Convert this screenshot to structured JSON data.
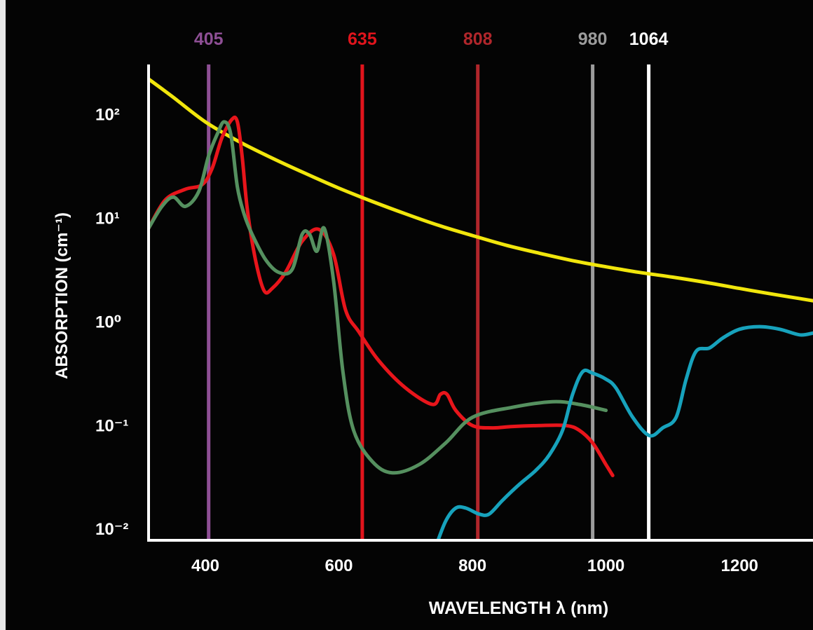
{
  "chart_data": {
    "type": "line",
    "title": "",
    "xlabel": "WAVELENGTH λ (nm)",
    "ylabel": "ABSORPTION (cm⁻¹)",
    "x_scale": "linear",
    "y_scale": "log",
    "xlim": [
      315,
      1310
    ],
    "ylim": [
      0.0077,
      500
    ],
    "x_ticks": [
      {
        "value": 400,
        "label": "400"
      },
      {
        "value": 600,
        "label": "600"
      },
      {
        "value": 800,
        "label": "800"
      },
      {
        "value": 1000,
        "label": "1000"
      },
      {
        "value": 1200,
        "label": "1200"
      }
    ],
    "y_ticks": [
      {
        "value": 100,
        "label": "10²"
      },
      {
        "value": 10,
        "label": "10¹"
      },
      {
        "value": 1,
        "label": "10⁰"
      },
      {
        "value": 0.1,
        "label": "10⁻¹"
      },
      {
        "value": 0.01,
        "label": "10⁻²"
      }
    ],
    "grid": false,
    "legend": "none",
    "vlines": [
      {
        "x": 405,
        "label": "405",
        "color": "#8e4f95"
      },
      {
        "x": 635,
        "label": "635",
        "color": "#e0141c"
      },
      {
        "x": 808,
        "label": "808",
        "color": "#b0262b"
      },
      {
        "x": 980,
        "label": "980",
        "color": "#9c9c9c"
      },
      {
        "x": 1064,
        "label": "1064",
        "color": "#ffffff"
      }
    ],
    "series": [
      {
        "color": "#f1e60c",
        "x": [
          315,
          350,
          400,
          450,
          500,
          550,
          600,
          650,
          700,
          750,
          800,
          850,
          900,
          950,
          1000,
          1050,
          1100,
          1150,
          1200,
          1250,
          1310
        ],
        "y": [
          220,
          150,
          85,
          55,
          38,
          27,
          19.5,
          14.5,
          11,
          8.5,
          6.8,
          5.5,
          4.6,
          3.9,
          3.4,
          3.0,
          2.7,
          2.4,
          2.1,
          1.85,
          1.6
        ]
      },
      {
        "color": "#e8151b",
        "x": [
          315,
          340,
          370,
          395,
          410,
          425,
          440,
          448,
          455,
          463,
          475,
          488,
          500,
          520,
          545,
          570,
          592,
          610,
          630,
          660,
          700,
          740,
          752,
          762,
          775,
          800,
          830,
          860,
          900,
          940,
          960,
          980,
          1000,
          1010
        ],
        "y": [
          8,
          15,
          19,
          21,
          30,
          60,
          90,
          85,
          40,
          12,
          4,
          2.0,
          2.1,
          3.0,
          6.0,
          7.8,
          4.5,
          1.3,
          0.8,
          0.42,
          0.23,
          0.16,
          0.2,
          0.2,
          0.14,
          0.1,
          0.095,
          0.098,
          0.1,
          0.1,
          0.09,
          0.068,
          0.042,
          0.033
        ]
      },
      {
        "color": "#55905f",
        "x": [
          315,
          335,
          352,
          370,
          390,
          405,
          418,
          428,
          438,
          448,
          458,
          470,
          490,
          510,
          530,
          545,
          556,
          567,
          578,
          592,
          606,
          622,
          650,
          680,
          720,
          760,
          800,
          860,
          920,
          960,
          1000
        ],
        "y": [
          8,
          13,
          16,
          13,
          18,
          40,
          65,
          85,
          65,
          20,
          11,
          7,
          4,
          3.0,
          3.2,
          7,
          7,
          4.8,
          8,
          2.5,
          0.33,
          0.09,
          0.045,
          0.035,
          0.042,
          0.068,
          0.12,
          0.15,
          0.17,
          0.16,
          0.14
        ]
      },
      {
        "color": "#17a2bc",
        "x": [
          745,
          760,
          775,
          790,
          810,
          825,
          845,
          870,
          895,
          915,
          935,
          950,
          965,
          980,
          1000,
          1015,
          1040,
          1065,
          1085,
          1105,
          1120,
          1135,
          1155,
          1175,
          1200,
          1230,
          1260,
          1290,
          1310
        ],
        "y": [
          0.0068,
          0.012,
          0.016,
          0.016,
          0.014,
          0.014,
          0.019,
          0.027,
          0.037,
          0.052,
          0.09,
          0.2,
          0.33,
          0.32,
          0.28,
          0.23,
          0.12,
          0.08,
          0.095,
          0.12,
          0.28,
          0.52,
          0.56,
          0.7,
          0.85,
          0.9,
          0.85,
          0.75,
          0.78
        ]
      }
    ]
  }
}
